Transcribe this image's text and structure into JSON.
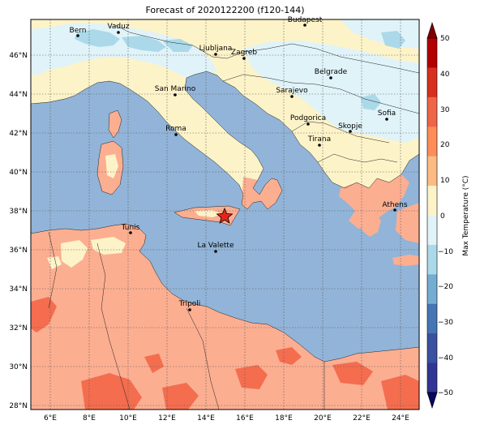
{
  "title": "Forecast of 2020122200 (f120-144)",
  "colorbar": {
    "label": "Max Temperature (°C)",
    "ticks": [
      "50",
      "40",
      "30",
      "20",
      "10",
      "0",
      "−10",
      "−20",
      "−30",
      "−40",
      "−50"
    ],
    "colors": [
      "#7f0000",
      "#b30000",
      "#d7301f",
      "#ef6548",
      "#fc8d59",
      "#fdbb84",
      "#fdf3c8",
      "#e0f3f8",
      "#abd9e9",
      "#74add1",
      "#4575b4",
      "#3a50a0",
      "#313695",
      "#08085e"
    ]
  },
  "axes": {
    "lon_labels": [
      "6°E",
      "8°E",
      "10°E",
      "12°E",
      "14°E",
      "16°E",
      "18°E",
      "20°E",
      "22°E",
      "24°E"
    ],
    "lat_labels": [
      "46°N",
      "44°N",
      "42°N",
      "40°N",
      "38°N",
      "36°N",
      "34°N",
      "32°N",
      "30°N",
      "28°N"
    ]
  },
  "fill_colors": {
    "sea": "#92b4d8",
    "cold": "#fdf3c8",
    "cool": "#e0f3f8",
    "light_blue": "#abd9e9",
    "warm": "#fcae91",
    "hot": "#f46d4f"
  },
  "cities": [
    {
      "name": "Bern"
    },
    {
      "name": "Vaduz"
    },
    {
      "name": "Budapest"
    },
    {
      "name": "Ljubljana"
    },
    {
      "name": "Zagreb"
    },
    {
      "name": "Belgrade"
    },
    {
      "name": "San Marino"
    },
    {
      "name": "Sarajevo"
    },
    {
      "name": "Sofia"
    },
    {
      "name": "Podgorica"
    },
    {
      "name": "Skopje"
    },
    {
      "name": "Roma"
    },
    {
      "name": "Tirana"
    },
    {
      "name": "Athens"
    },
    {
      "name": "Tunis"
    },
    {
      "name": "La Valette"
    },
    {
      "name": "Tripoli"
    }
  ]
}
